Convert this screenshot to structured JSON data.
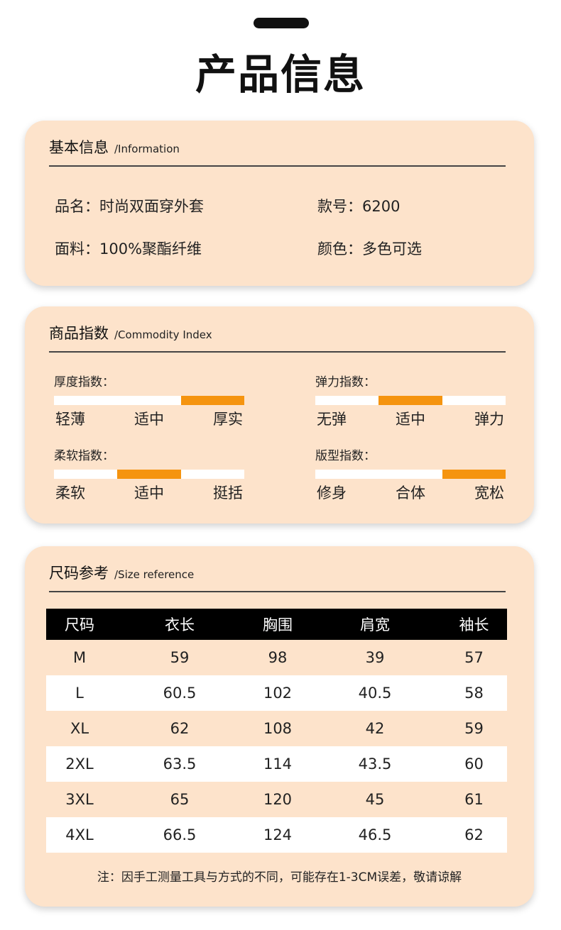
{
  "page": {
    "title": "产品信息"
  },
  "basic_info": {
    "title_cn": "基本信息",
    "title_en": "/Information",
    "items": [
      {
        "text": "品名：时尚双面穿外套"
      },
      {
        "text": "款号：6200"
      },
      {
        "text": "面料：100%聚酯纤维"
      },
      {
        "text": "颜色：多色可选"
      }
    ]
  },
  "commodity_index": {
    "title_cn": "商品指数",
    "title_en": "/Commodity Index",
    "indices": [
      {
        "label": "厚度指数：",
        "scale": [
          "轻薄",
          "适中",
          "厚实"
        ],
        "selected_level": 2
      },
      {
        "label": "弹力指数：",
        "scale": [
          "无弹",
          "适中",
          "弹力"
        ],
        "selected_level": 1
      },
      {
        "label": "柔软指数：",
        "scale": [
          "柔软",
          "适中",
          "挺括"
        ],
        "selected_level": 1
      },
      {
        "label": "版型指数：",
        "scale": [
          "修身",
          "合体",
          "宽松"
        ],
        "selected_level": 2
      }
    ],
    "bar_fill_color": "#f5940f"
  },
  "size_reference": {
    "title_cn": "尺码参考",
    "title_en": "/Size reference",
    "headers": [
      "尺码",
      "衣长",
      "胸围",
      "肩宽",
      "袖长"
    ],
    "rows": [
      [
        "M",
        "59",
        "98",
        "39",
        "57"
      ],
      [
        "L",
        "60.5",
        "102",
        "40.5",
        "58"
      ],
      [
        "XL",
        "62",
        "108",
        "42",
        "59"
      ],
      [
        "2XL",
        "63.5",
        "114",
        "43.5",
        "60"
      ],
      [
        "3XL",
        "65",
        "120",
        "45",
        "61"
      ],
      [
        "4XL",
        "66.5",
        "124",
        "46.5",
        "62"
      ]
    ],
    "note": "注：因手工测量工具与方式的不同，可能存在1-3CM误差，敬请谅解"
  },
  "colors": {
    "card_bg": "#fde3cb",
    "accent": "#f5940f",
    "header_bg": "#000000"
  }
}
